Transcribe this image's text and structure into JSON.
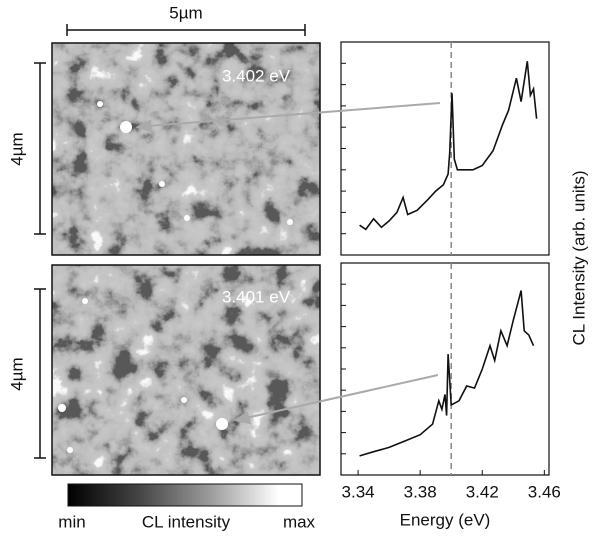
{
  "figure": {
    "scale_x": "5µm",
    "maps": [
      {
        "label": "3.402 eV",
        "scale_y": "4µm"
      },
      {
        "label": "3.401 eV",
        "scale_y": "4µm"
      }
    ],
    "colorbar": {
      "min": "min",
      "title": "CL intensity",
      "max": "max"
    },
    "y_label": "CL Intensity (arb. units)"
  },
  "chart_data": [
    {
      "type": "line",
      "xlim": [
        3.329,
        3.463
      ],
      "ylim": [
        0,
        100
      ],
      "marker_x": 3.4,
      "x": [
        3.341,
        3.345,
        3.35,
        3.355,
        3.36,
        3.365,
        3.369,
        3.372,
        3.378,
        3.385,
        3.39,
        3.395,
        3.398,
        3.399,
        3.4005,
        3.402,
        3.404,
        3.41,
        3.414,
        3.42,
        3.427,
        3.433,
        3.437,
        3.442,
        3.445,
        3.449,
        3.451,
        3.453,
        3.455
      ],
      "series": [
        {
          "color": "#111111",
          "values": [
            14,
            12,
            17,
            13,
            16,
            20,
            27,
            19,
            21,
            26,
            30,
            33,
            38,
            48,
            76,
            45,
            40,
            40,
            40,
            42,
            49,
            61,
            68,
            83,
            72,
            91,
            75,
            78,
            64
          ]
        }
      ]
    },
    {
      "type": "line",
      "xlim": [
        3.329,
        3.463
      ],
      "ylim": [
        0,
        100
      ],
      "marker_x": 3.4,
      "x_label": "Energy (eV)",
      "xticks": [
        3.34,
        3.38,
        3.42,
        3.46
      ],
      "x": [
        3.341,
        3.35,
        3.36,
        3.37,
        3.38,
        3.388,
        3.392,
        3.394,
        3.396,
        3.397,
        3.398,
        3.4,
        3.405,
        3.41,
        3.415,
        3.42,
        3.425,
        3.428,
        3.432,
        3.436,
        3.44,
        3.445,
        3.447,
        3.45,
        3.453
      ],
      "series": [
        {
          "color": "#111111",
          "values": [
            9,
            11,
            13,
            16,
            19,
            24,
            35,
            31,
            38,
            28,
            57,
            33,
            35,
            42,
            41,
            50,
            61,
            54,
            68,
            61,
            73,
            87,
            68,
            66,
            61
          ]
        }
      ]
    }
  ]
}
